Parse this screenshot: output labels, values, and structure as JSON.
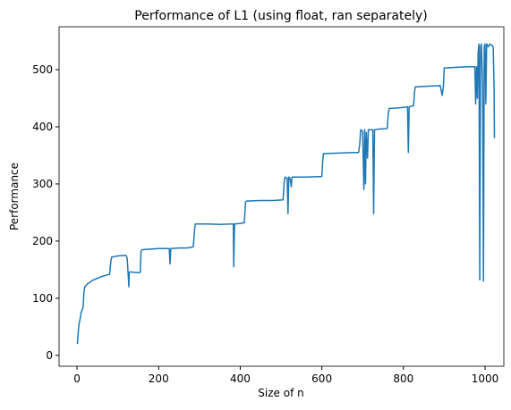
{
  "chart_data": {
    "type": "line",
    "title": "Performance of L1 (using float, ran separately)",
    "xlabel": "Size of n",
    "ylabel": "Performance",
    "x": [
      1,
      3,
      5,
      8,
      10,
      13,
      15,
      17,
      19,
      22,
      25,
      30,
      35,
      40,
      50,
      60,
      70,
      80,
      83,
      85,
      100,
      120,
      123,
      125,
      127,
      128,
      130,
      145,
      155,
      157,
      160,
      180,
      200,
      226,
      228,
      230,
      250,
      270,
      285,
      288,
      290,
      320,
      350,
      380,
      383,
      384,
      386,
      400,
      410,
      413,
      415,
      450,
      480,
      505,
      508,
      510,
      515,
      517,
      519,
      522,
      525,
      527,
      560,
      600,
      602,
      604,
      640,
      680,
      690,
      693,
      695,
      700,
      703,
      705,
      707,
      709,
      712,
      714,
      720,
      725,
      727,
      729,
      740,
      760,
      763,
      765,
      790,
      810,
      812,
      814,
      825,
      827,
      829,
      860,
      890,
      895,
      898,
      900,
      930,
      960,
      975,
      977,
      979,
      981,
      983,
      985,
      987,
      989,
      991,
      994,
      996,
      998,
      1000,
      1002,
      1004,
      1008,
      1012,
      1016,
      1020,
      1022,
      1023
    ],
    "series": [
      {
        "name": "L1",
        "color": "#1f77b4",
        "values": [
          20,
          40,
          55,
          65,
          75,
          80,
          85,
          110,
          120,
          122,
          125,
          127,
          130,
          132,
          135,
          138,
          140,
          142,
          165,
          172,
          174,
          175,
          170,
          145,
          120,
          145,
          146,
          145,
          145,
          183,
          185,
          186,
          187,
          187,
          160,
          187,
          188,
          188,
          190,
          220,
          230,
          230,
          229,
          230,
          230,
          155,
          230,
          231,
          232,
          268,
          270,
          271,
          271,
          272,
          305,
          312,
          310,
          248,
          312,
          310,
          295,
          312,
          312,
          313,
          340,
          353,
          354,
          355,
          355,
          370,
          395,
          392,
          290,
          395,
          300,
          390,
          345,
          395,
          395,
          395,
          248,
          395,
          396,
          397,
          425,
          432,
          433,
          435,
          355,
          435,
          437,
          460,
          470,
          471,
          472,
          455,
          472,
          503,
          504,
          505,
          505,
          440,
          505,
          450,
          530,
          545,
          132,
          540,
          545,
          470,
          130,
          540,
          545,
          440,
          545,
          540,
          545,
          543,
          540,
          470,
          380
        ]
      }
    ],
    "xlim": [
      -44,
      1046
    ],
    "ylim": [
      -19,
      575
    ],
    "xticks": [
      0,
      200,
      400,
      600,
      800,
      1000
    ],
    "yticks": [
      0,
      100,
      200,
      300,
      400,
      500
    ]
  }
}
